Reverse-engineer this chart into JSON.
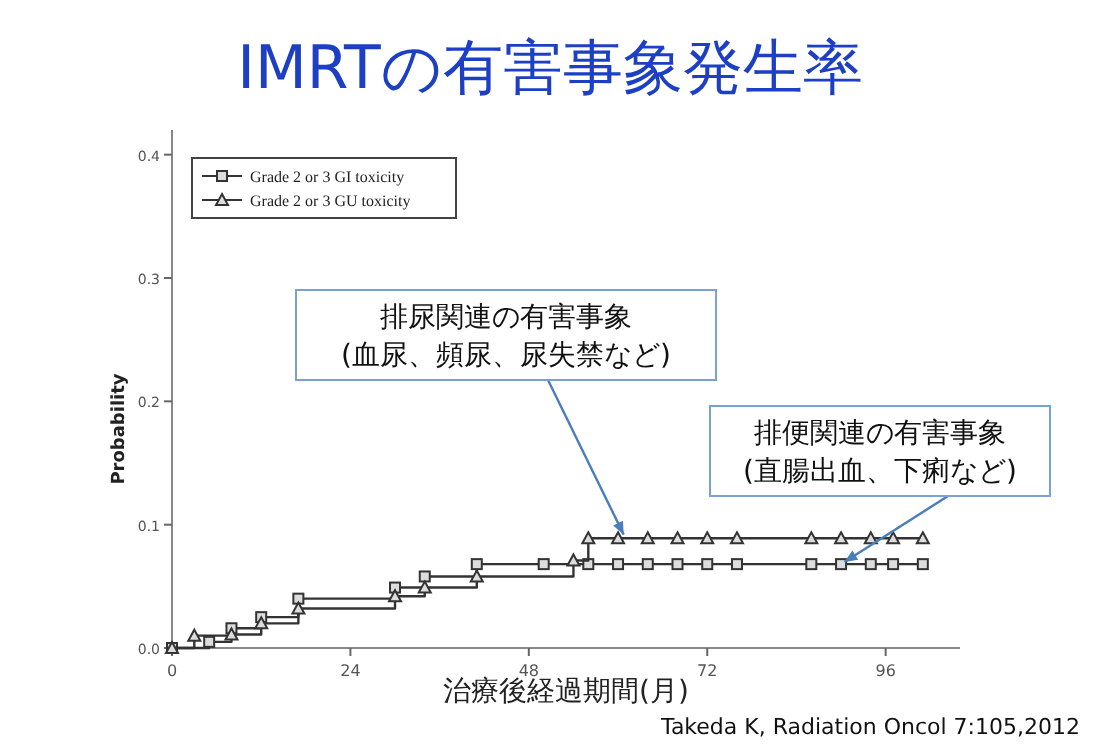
{
  "chart_data": {
    "type": "step",
    "title": "IMRTの有害事象発生率",
    "xlabel": "治療後経過期間(月)",
    "ylabel": "Probability",
    "xlim": [
      0,
      106
    ],
    "ylim": [
      0,
      0.42
    ],
    "xticks": [
      0,
      24,
      48,
      72,
      96
    ],
    "yticks": [
      {
        "value": 0,
        "label": "0.0"
      },
      {
        "value": 0.1,
        "label": "0.1"
      },
      {
        "value": 0.2,
        "label": "0.2"
      },
      {
        "value": 0.3,
        "label": "0.3"
      },
      {
        "value": 0.4,
        "label": "0.4"
      }
    ],
    "grid": false,
    "legend": "top left",
    "line_style": "solid",
    "series": [
      {
        "name": "Grade 2 or 3 GI toxicity",
        "color": "#333333",
        "marker": "square",
        "x": [
          0,
          5,
          8,
          12,
          17,
          30,
          34,
          41,
          50,
          56,
          60,
          64,
          68,
          72,
          76,
          86,
          90,
          94,
          97,
          101
        ],
        "values": [
          0,
          0.005,
          0.016,
          0.025,
          0.04,
          0.049,
          0.058,
          0.068,
          0.068,
          0.068,
          0.068,
          0.068,
          0.068,
          0.068,
          0.068,
          0.068,
          0.068,
          0.068,
          0.068,
          0.068
        ]
      },
      {
        "name": "Grade 2 or 3 GU toxicity",
        "color": "#333333",
        "marker": "triangle",
        "x": [
          0,
          3,
          8,
          12,
          17,
          30,
          34,
          41,
          54,
          56,
          60,
          64,
          68,
          72,
          76,
          86,
          90,
          94,
          97,
          101
        ],
        "values": [
          0,
          0.01,
          0.011,
          0.02,
          0.032,
          0.042,
          0.049,
          0.058,
          0.071,
          0.089,
          0.089,
          0.089,
          0.089,
          0.089,
          0.089,
          0.089,
          0.089,
          0.089,
          0.089,
          0.089
        ]
      }
    ],
    "annotations": [
      {
        "text": "排尿関連の有害事象\n(血尿、頻尿、尿失禁など)",
        "x": 61,
        "y": 0.089
      },
      {
        "text": "排便関連の有害事象\n(直腸出血、下痢など)",
        "x": 90,
        "y": 0.068
      },
      "Takeda K, Radiation Oncol 7:105,2012"
    ]
  }
}
